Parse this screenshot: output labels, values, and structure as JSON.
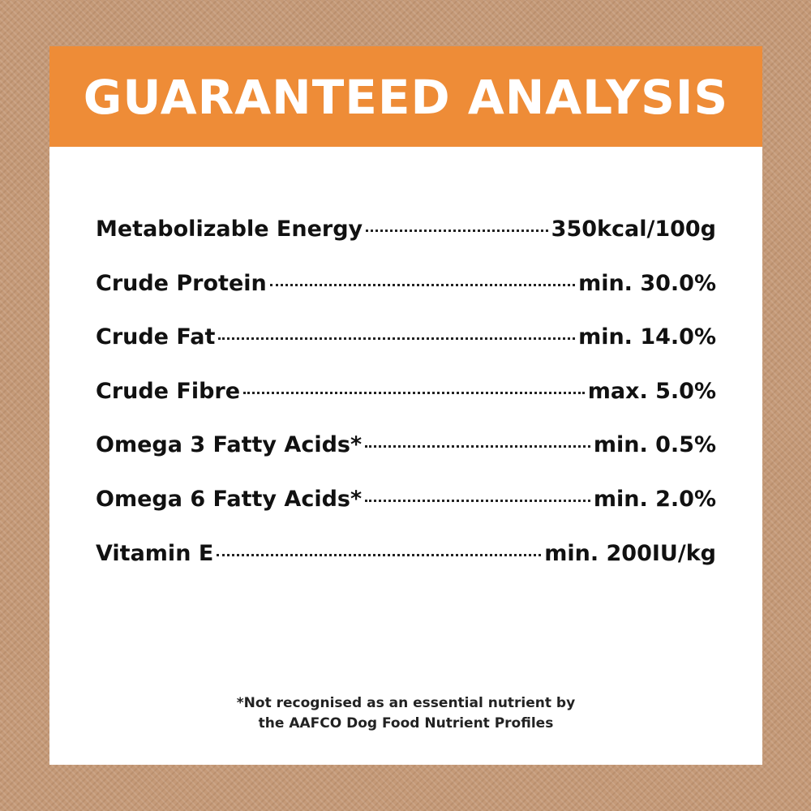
{
  "header": {
    "title": "GUARANTEED ANALYSIS"
  },
  "analysis": {
    "rows": [
      {
        "label": "Metabolizable Energy",
        "value": "350kcal/100g"
      },
      {
        "label": "Crude Protein",
        "value": "min. 30.0%"
      },
      {
        "label": "Crude Fat",
        "value": "min. 14.0%"
      },
      {
        "label": "Crude Fibre",
        "value": "max. 5.0%"
      },
      {
        "label": "Omega 3 Fatty Acids*",
        "value": "min. 0.5%"
      },
      {
        "label": "Omega 6 Fatty Acids*",
        "value": "min. 2.0%"
      },
      {
        "label": "Vitamin E",
        "value": "min. 200IU/kg"
      }
    ]
  },
  "footnote": {
    "line1": "*Not recognised as an essential nutrient by",
    "line2": "the AAFCO Dog Food Nutrient Profiles"
  },
  "colors": {
    "header_bg": "#ee8c37",
    "background": "#c59a78",
    "card": "#ffffff",
    "text": "#111111"
  }
}
